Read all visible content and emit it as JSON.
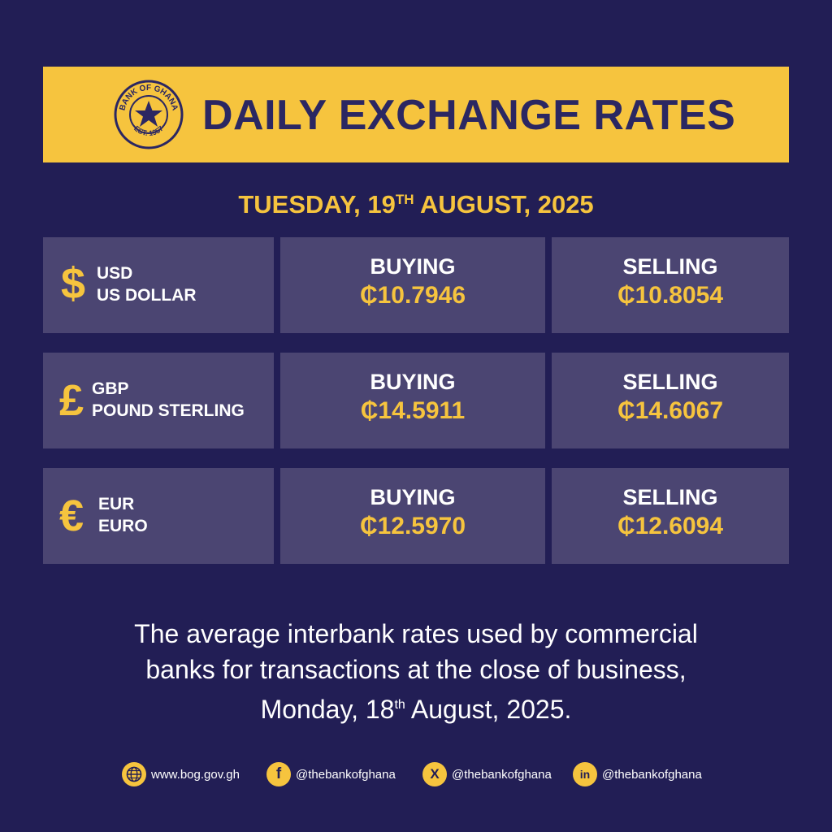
{
  "header": {
    "title": "DAILY EXCHANGE RATES",
    "seal": {
      "top_text": "BANK OF GHANA",
      "bottom_text": "EST. 1957",
      "icon": "star-icon"
    }
  },
  "date": {
    "weekday_day": "TUESDAY, 19",
    "suffix": "TH",
    "month_year": "AUGUST, 2025"
  },
  "rates": [
    {
      "symbol": "$",
      "code": "USD",
      "name": "US DOLLAR",
      "buying_label": "BUYING",
      "buying": "₵10.7946",
      "selling_label": "SELLING",
      "selling": "₵10.8054"
    },
    {
      "symbol": "£",
      "code": "GBP",
      "name": "POUND STERLING",
      "buying_label": "BUYING",
      "buying": "₵14.5911",
      "selling_label": "SELLING",
      "selling": "₵14.6067"
    },
    {
      "symbol": "€",
      "code": "EUR",
      "name": "EURO",
      "buying_label": "BUYING",
      "buying": "₵12.5970",
      "selling_label": "SELLING",
      "selling": "₵12.6094"
    }
  ],
  "note": {
    "line1": "The average interbank rates used by commercial",
    "line2": "banks for transactions at the close of business,",
    "line3_pre": "Monday, 18",
    "line3_sup": "th",
    "line3_post": " August, 2025."
  },
  "footer": {
    "website": {
      "icon": "globe-icon",
      "label": "www.bog.gov.gh"
    },
    "facebook": {
      "icon": "facebook-icon",
      "glyph": "f",
      "label": "@thebankofghana"
    },
    "x": {
      "icon": "x-icon",
      "glyph": "X",
      "label": "@thebankofghana"
    },
    "linkedin": {
      "icon": "linkedin-icon",
      "glyph": "in",
      "label": "@thebankofghana"
    }
  },
  "colors": {
    "background": "#221e55",
    "accent": "#f6c43e",
    "box": "#4b4572",
    "title": "#2b2762"
  }
}
